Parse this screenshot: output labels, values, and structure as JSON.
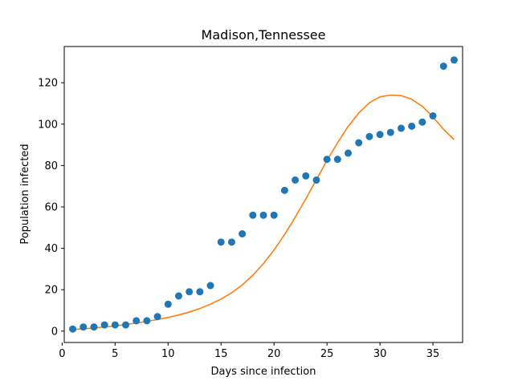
{
  "chart_data": {
    "type": "scatter",
    "title": "Madison,Tennessee",
    "xlabel": "Days since infection",
    "ylabel": "Population infected",
    "xlim": [
      0.2,
      37.8
    ],
    "ylim": [
      -5.5,
      137.5
    ],
    "xticks": [
      0,
      5,
      10,
      15,
      20,
      25,
      30,
      35
    ],
    "yticks": [
      0,
      20,
      40,
      60,
      80,
      100,
      120
    ],
    "grid": false,
    "series": [
      {
        "kind": "scatter",
        "color": "#1f77b4",
        "x": [
          1,
          2,
          3,
          4,
          5,
          6,
          7,
          8,
          9,
          10,
          11,
          12,
          13,
          14,
          15,
          16,
          17,
          18,
          19,
          20,
          21,
          22,
          23,
          24,
          25,
          26,
          27,
          28,
          29,
          30,
          31,
          32,
          33,
          34,
          35,
          36,
          37
        ],
        "y": [
          1,
          2,
          2,
          3,
          3,
          3,
          5,
          5,
          7,
          13,
          17,
          19,
          19,
          22,
          43,
          43,
          47,
          56,
          56,
          56,
          68,
          73,
          75,
          73,
          83,
          83,
          86,
          91,
          94,
          95,
          96,
          98,
          99,
          101,
          104,
          128,
          131
        ]
      },
      {
        "kind": "line",
        "color": "#ff7f0e",
        "x": [
          1,
          2,
          3,
          4,
          5,
          6,
          7,
          8,
          9,
          10,
          11,
          12,
          13,
          14,
          15,
          16,
          17,
          18,
          19,
          20,
          21,
          22,
          23,
          24,
          25,
          26,
          27,
          28,
          29,
          30,
          31,
          32,
          33,
          34,
          35,
          36,
          37
        ],
        "y": [
          0.8,
          1.1,
          1.5,
          2.0,
          2.5,
          3.2,
          3.9,
          4.7,
          5.6,
          6.6,
          7.8,
          9.2,
          10.9,
          13.0,
          15.5,
          18.5,
          22.3,
          27.0,
          32.6,
          39.2,
          46.7,
          55.0,
          63.9,
          73.2,
          82.4,
          91.0,
          98.9,
          105.4,
          110.3,
          113.2,
          114.0,
          113.8,
          112.0,
          108.6,
          103.5,
          97.5,
          92.5
        ]
      }
    ]
  }
}
